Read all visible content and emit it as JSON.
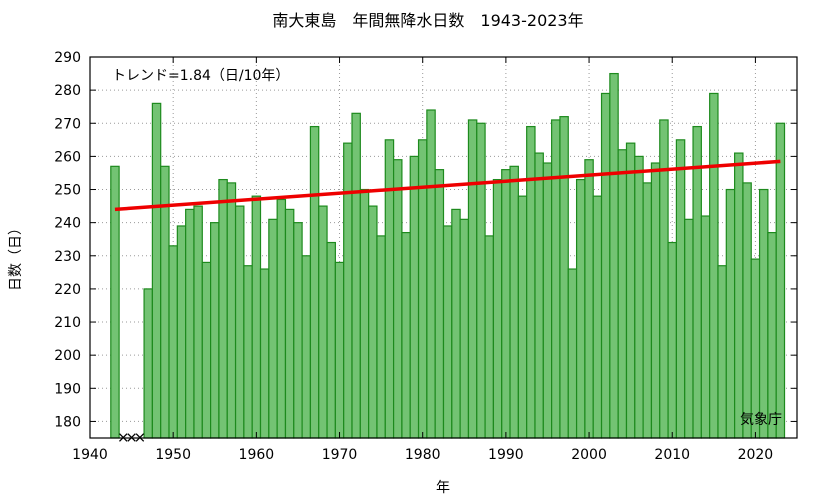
{
  "chart_data": {
    "type": "bar",
    "title": "南大東島　年間無降水日数　1943-2023年",
    "xlabel": "年",
    "ylabel": "日数（日）",
    "xlim": [
      1940,
      2025
    ],
    "ylim": [
      175,
      290
    ],
    "xticks": [
      1940,
      1950,
      1960,
      1970,
      1980,
      1990,
      2000,
      2010,
      2020
    ],
    "yticks": [
      180,
      190,
      200,
      210,
      220,
      230,
      240,
      250,
      260,
      270,
      280,
      290
    ],
    "grid": true,
    "trend_label": "トレンド=1.84（日/10年）",
    "trend": {
      "start": [
        1943,
        244
      ],
      "end": [
        2023,
        258.5
      ]
    },
    "missing_years": [
      1944,
      1945,
      1946
    ],
    "missing_marker": "×",
    "source": "気象庁",
    "years": [
      1943,
      1944,
      1945,
      1946,
      1947,
      1948,
      1949,
      1950,
      1951,
      1952,
      1953,
      1954,
      1955,
      1956,
      1957,
      1958,
      1959,
      1960,
      1961,
      1962,
      1963,
      1964,
      1965,
      1966,
      1967,
      1968,
      1969,
      1970,
      1971,
      1972,
      1973,
      1974,
      1975,
      1976,
      1977,
      1978,
      1979,
      1980,
      1981,
      1982,
      1983,
      1984,
      1985,
      1986,
      1987,
      1988,
      1989,
      1990,
      1991,
      1992,
      1993,
      1994,
      1995,
      1996,
      1997,
      1998,
      1999,
      2000,
      2001,
      2002,
      2003,
      2004,
      2005,
      2006,
      2007,
      2008,
      2009,
      2010,
      2011,
      2012,
      2013,
      2014,
      2015,
      2016,
      2017,
      2018,
      2019,
      2020,
      2021,
      2022,
      2023
    ],
    "values": [
      257,
      null,
      null,
      null,
      220,
      276,
      257,
      233,
      239,
      244,
      245,
      228,
      240,
      253,
      252,
      245,
      227,
      248,
      226,
      241,
      247,
      244,
      240,
      230,
      269,
      245,
      234,
      228,
      264,
      273,
      250,
      245,
      236,
      265,
      259,
      237,
      260,
      265,
      274,
      256,
      239,
      244,
      241,
      271,
      270,
      236,
      253,
      256,
      257,
      248,
      269,
      261,
      258,
      271,
      272,
      226,
      253,
      259,
      248,
      279,
      285,
      262,
      264,
      260,
      252,
      258,
      271,
      234,
      265,
      241,
      269,
      242,
      279,
      227,
      250,
      261,
      252,
      229,
      250,
      237,
      270
    ],
    "colors": {
      "bar_fill": "#73c373",
      "bar_edge": "#1d8a1d",
      "trend": "#ee0000"
    }
  }
}
